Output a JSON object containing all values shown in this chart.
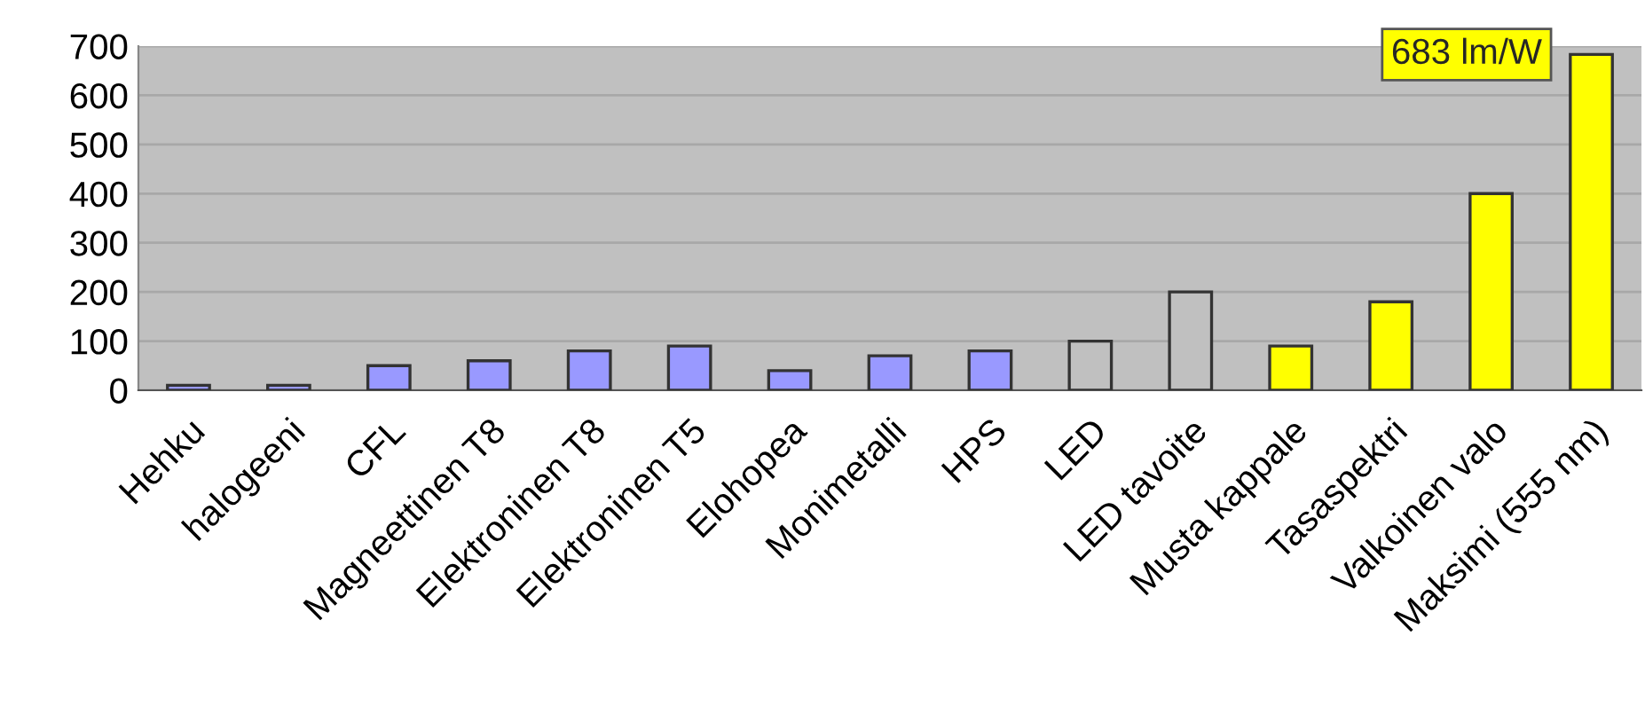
{
  "chart_data": {
    "type": "bar",
    "categories": [
      "Hehku",
      "halogeeni",
      "CFL",
      "Magneettinen T8",
      "Elektroninen T8",
      "Elektroninen T5",
      "Elohopea",
      "Monimetalli",
      "HPS",
      "LED",
      "LED tavoite",
      "Musta kappale",
      "Tasaspektri",
      "Valkoinen valo",
      "Maksimi (555 nm)"
    ],
    "values": [
      10,
      10,
      50,
      60,
      80,
      90,
      40,
      70,
      80,
      100,
      200,
      90,
      180,
      400,
      683
    ],
    "colors": [
      "#9999ff",
      "#9999ff",
      "#9999ff",
      "#9999ff",
      "#9999ff",
      "#9999ff",
      "#9999ff",
      "#9999ff",
      "#9999ff",
      "#c0c0c0",
      "#c0c0c0",
      "#ffff00",
      "#ffff00",
      "#ffff00",
      "#ffff00"
    ],
    "ylim": [
      0,
      700
    ],
    "yticks": [
      0,
      100,
      200,
      300,
      400,
      500,
      600,
      700
    ],
    "grid": "y",
    "annotations": [
      {
        "text": "683 lm/W",
        "x": "Maksimi (555 nm)",
        "y": 683
      }
    ]
  }
}
